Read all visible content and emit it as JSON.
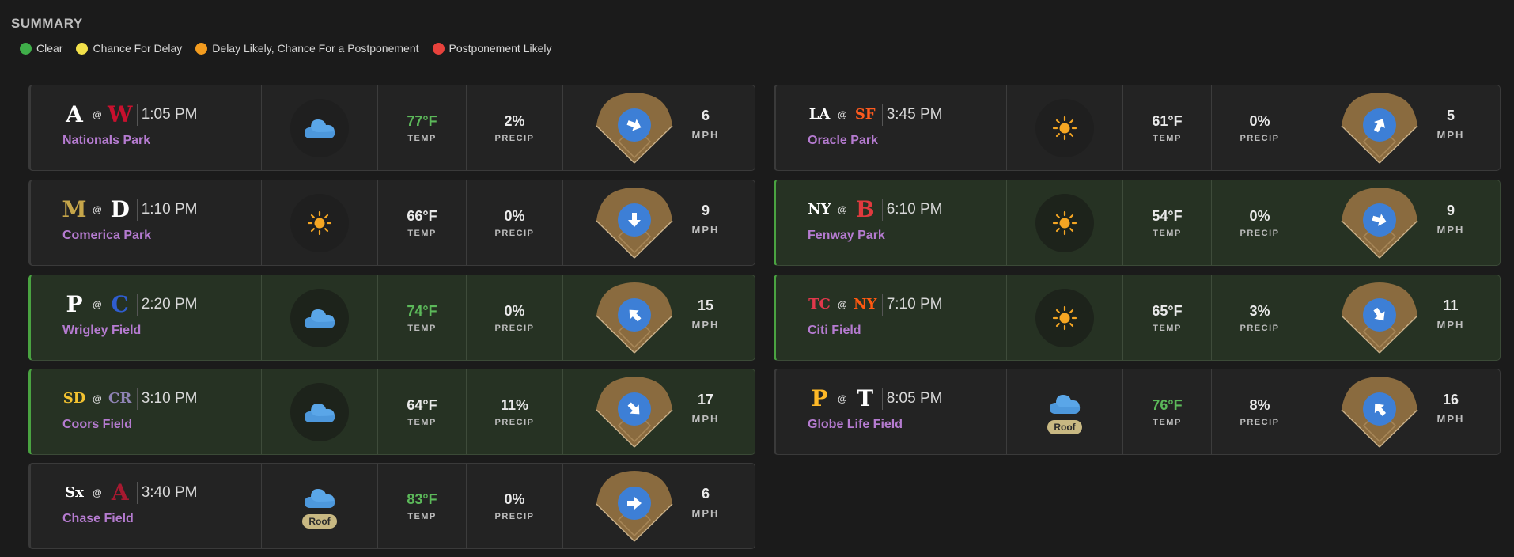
{
  "summary": {
    "title": "SUMMARY",
    "legend": [
      {
        "label": "Clear",
        "color": "#3fae49"
      },
      {
        "label": "Chance For Delay",
        "color": "#f3e14a"
      },
      {
        "label": "Delay Likely, Chance For a Postponement",
        "color": "#f39c1f"
      },
      {
        "label": "Postponement Likely",
        "color": "#e8423c"
      }
    ]
  },
  "labels": {
    "temp": "TEMP",
    "precip": "PRECIP",
    "mph": "MPH",
    "at": "@",
    "roof": "Roof"
  },
  "games": [
    {
      "away": {
        "abbr": "A",
        "color": "#ffffff",
        "name_icon": "braves-logo-icon"
      },
      "home": {
        "abbr": "W",
        "color": "#c8102e",
        "name_icon": "nationals-logo-icon"
      },
      "time": "1:05 PM",
      "park": "Nationals Park",
      "sky": "cloudy",
      "roof": false,
      "temp": "77°F",
      "temp_hot": true,
      "precip": "2%",
      "wind": "6",
      "wind_dir_deg": 110,
      "status": "clear"
    },
    {
      "away": {
        "abbr": "M",
        "color": "#c6a64a",
        "name_icon": "brewers-logo-icon"
      },
      "home": {
        "abbr": "D",
        "color": "#ffffff",
        "name_icon": "tigers-logo-icon"
      },
      "time": "1:10 PM",
      "park": "Comerica Park",
      "sky": "sunny",
      "roof": false,
      "temp": "66°F",
      "temp_hot": false,
      "precip": "0%",
      "wind": "9",
      "wind_dir_deg": 180,
      "status": "clear"
    },
    {
      "away": {
        "abbr": "P",
        "color": "#ffffff",
        "name_icon": "phillies-logo-icon"
      },
      "home": {
        "abbr": "C",
        "color": "#2f5dd0",
        "name_icon": "cubs-logo-icon"
      },
      "time": "2:20 PM",
      "park": "Wrigley Field",
      "sky": "cloudy",
      "roof": false,
      "temp": "74°F",
      "temp_hot": true,
      "precip": "0%",
      "wind": "15",
      "wind_dir_deg": 315,
      "status": "green"
    },
    {
      "away": {
        "abbr": "SD",
        "color": "#f2c230",
        "name_icon": "padres-logo-icon"
      },
      "home": {
        "abbr": "CR",
        "color": "#8f83b5",
        "name_icon": "rockies-logo-icon"
      },
      "time": "3:10 PM",
      "park": "Coors Field",
      "sky": "cloudy",
      "roof": false,
      "temp": "64°F",
      "temp_hot": false,
      "precip": "11%",
      "wind": "17",
      "wind_dir_deg": 135,
      "status": "green"
    },
    {
      "away": {
        "abbr": "Sx",
        "color": "#ffffff",
        "name_icon": "white-sox-logo-icon"
      },
      "home": {
        "abbr": "A",
        "color": "#a71930",
        "name_icon": "diamondbacks-logo-icon"
      },
      "time": "3:40 PM",
      "park": "Chase Field",
      "sky": "cloudy",
      "roof": true,
      "temp": "83°F",
      "temp_hot": true,
      "precip": "0%",
      "wind": "6",
      "wind_dir_deg": 90,
      "status": "clear"
    },
    {
      "away": {
        "abbr": "LA",
        "color": "#ffffff",
        "name_icon": "dodgers-logo-icon"
      },
      "home": {
        "abbr": "SF",
        "color": "#fd5a1e",
        "name_icon": "giants-logo-icon"
      },
      "time": "3:45 PM",
      "park": "Oracle Park",
      "sky": "sunny",
      "roof": false,
      "temp": "61°F",
      "temp_hot": false,
      "precip": "0%",
      "wind": "5",
      "wind_dir_deg": 30,
      "status": "clear"
    },
    {
      "away": {
        "abbr": "NY",
        "color": "#ffffff",
        "name_icon": "yankees-logo-icon"
      },
      "home": {
        "abbr": "B",
        "color": "#e03a3e",
        "name_icon": "red-sox-logo-icon"
      },
      "time": "6:10 PM",
      "park": "Fenway Park",
      "sky": "sunny",
      "roof": false,
      "temp": "54°F",
      "temp_hot": false,
      "precip": "0%",
      "wind": "9",
      "wind_dir_deg": 105,
      "status": "green"
    },
    {
      "away": {
        "abbr": "TC",
        "color": "#e0384b",
        "name_icon": "twins-logo-icon"
      },
      "home": {
        "abbr": "NY",
        "color": "#ff5910",
        "name_icon": "mets-logo-icon"
      },
      "time": "7:10 PM",
      "park": "Citi Field",
      "sky": "sunny",
      "roof": false,
      "temp": "65°F",
      "temp_hot": false,
      "precip": "3%",
      "wind": "11",
      "wind_dir_deg": 145,
      "status": "green"
    },
    {
      "away": {
        "abbr": "P",
        "color": "#fdb827",
        "name_icon": "pirates-logo-icon"
      },
      "home": {
        "abbr": "T",
        "color": "#ffffff",
        "name_icon": "rangers-logo-icon"
      },
      "time": "8:05 PM",
      "park": "Globe Life Field",
      "sky": "cloudy",
      "roof": true,
      "temp": "76°F",
      "temp_hot": true,
      "precip": "8%",
      "wind": "16",
      "wind_dir_deg": 320,
      "status": "clear"
    }
  ]
}
